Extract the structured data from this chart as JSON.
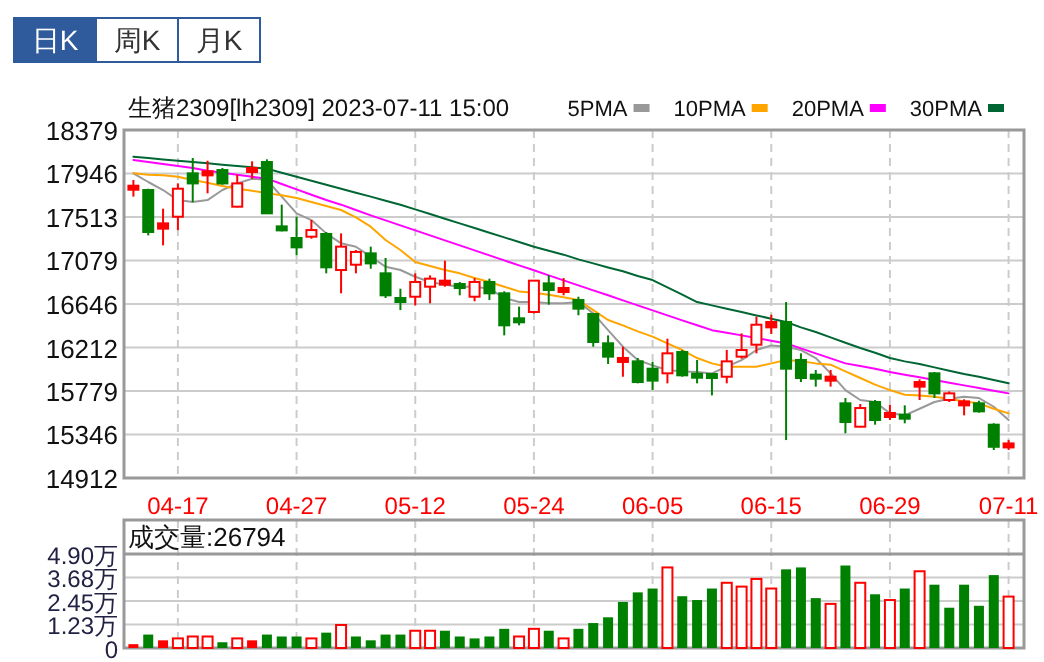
{
  "chart_data": [
    {
      "type": "candlestick",
      "title": "生猪2309[lh2309] 2023-07-11 15:00",
      "annotations": [
        "日K",
        "周K",
        "月K"
      ],
      "categories": [
        null,
        null,
        null,
        "04-17",
        null,
        null,
        null,
        null,
        null,
        null,
        null,
        "04-27",
        null,
        null,
        null,
        null,
        null,
        null,
        null,
        "05-12",
        null,
        null,
        null,
        null,
        null,
        null,
        null,
        "05-24",
        null,
        null,
        null,
        null,
        null,
        null,
        null,
        "06-05",
        null,
        null,
        null,
        null,
        null,
        null,
        null,
        "06-15",
        null,
        null,
        null,
        null,
        null,
        null,
        null,
        "06-29",
        null,
        null,
        null,
        null,
        null,
        null,
        null,
        "07-11"
      ],
      "ohlc": [
        [
          17794,
          17881,
          17715,
          17814
        ],
        [
          17781,
          17794,
          17329,
          17363
        ],
        [
          17396,
          17595,
          17230,
          17449
        ],
        [
          17515,
          17847,
          17382,
          17794
        ],
        [
          17947,
          18100,
          17661,
          17847
        ],
        [
          17940,
          18073,
          17748,
          17954
        ],
        [
          17980,
          18000,
          17834,
          17847
        ],
        [
          17615,
          17934,
          17608,
          17847
        ],
        [
          17974,
          18067,
          17894,
          17987
        ],
        [
          18060,
          18087,
          17542,
          17549
        ],
        [
          17416,
          17635,
          17369,
          17382
        ],
        [
          17303,
          17515,
          17130,
          17210
        ],
        [
          17316,
          17482,
          17296,
          17382
        ],
        [
          17343,
          17363,
          16951,
          17011
        ],
        [
          16984,
          17349,
          16752,
          17217
        ],
        [
          17037,
          17183,
          16951,
          17164
        ],
        [
          17150,
          17217,
          16997,
          17050
        ],
        [
          16951,
          17104,
          16705,
          16732
        ],
        [
          16699,
          16798,
          16585,
          16672
        ],
        [
          16718,
          16951,
          16632,
          16865
        ],
        [
          16818,
          16931,
          16652,
          16898
        ],
        [
          16851,
          17077,
          16818,
          16865
        ],
        [
          16838,
          16865,
          16732,
          16811
        ],
        [
          16718,
          16904,
          16672,
          16865
        ],
        [
          16865,
          16898,
          16685,
          16752
        ],
        [
          16752,
          16772,
          16333,
          16433
        ],
        [
          16493,
          16619,
          16433,
          16473
        ],
        [
          16566,
          16884,
          16552,
          16878
        ],
        [
          16851,
          16931,
          16639,
          16785
        ],
        [
          16772,
          16904,
          16732,
          16798
        ],
        [
          16685,
          16718,
          16533,
          16599
        ],
        [
          16546,
          16553,
          16220,
          16267
        ],
        [
          16254,
          16333,
          16048,
          16121
        ],
        [
          16068,
          16220,
          15921,
          16108
        ],
        [
          16074,
          16108,
          15855,
          15868
        ],
        [
          16001,
          16068,
          15789,
          15882
        ],
        [
          15955,
          16300,
          15855,
          16154
        ],
        [
          16167,
          16187,
          15921,
          15935
        ],
        [
          15941,
          16088,
          15855,
          15921
        ],
        [
          15935,
          15941,
          15735,
          15921
        ],
        [
          15921,
          16187,
          15855,
          16074
        ],
        [
          16121,
          16353,
          16101,
          16187
        ],
        [
          16240,
          16519,
          16154,
          16439
        ],
        [
          16413,
          16539,
          16347,
          16466
        ],
        [
          16466,
          16665,
          15290,
          16001
        ],
        [
          16088,
          16154,
          15868,
          15908
        ],
        [
          15941,
          15988,
          15822,
          15902
        ],
        [
          15895,
          15988,
          15822,
          15908
        ],
        [
          15656,
          15709,
          15357,
          15470
        ],
        [
          15423,
          15649,
          15417,
          15609
        ],
        [
          15669,
          15689,
          15443,
          15490
        ],
        [
          15530,
          15642,
          15490,
          15549
        ],
        [
          15530,
          15636,
          15457,
          15516
        ],
        [
          15822,
          15895,
          15689,
          15868
        ],
        [
          15955,
          15968,
          15709,
          15755
        ],
        [
          15689,
          15775,
          15669,
          15755
        ],
        [
          15649,
          15696,
          15536,
          15662
        ],
        [
          15656,
          15682,
          15563,
          15576
        ],
        [
          15443,
          15457,
          15191,
          15223
        ],
        [
          15230,
          15290,
          15191,
          15243
        ]
      ],
      "colors": [
        "#ff0000",
        "#008000",
        "#ff0000",
        "#ff0000",
        "#008000",
        "#ff0000",
        "#008000",
        "#ff0000",
        "#ff0000",
        "#008000",
        "#008000",
        "#008000",
        "#ff0000",
        "#008000",
        "#ff0000",
        "#ff0000",
        "#008000",
        "#008000",
        "#008000",
        "#ff0000",
        "#ff0000",
        "#ff0000",
        "#008000",
        "#ff0000",
        "#008000",
        "#008000",
        "#008000",
        "#ff0000",
        "#008000",
        "#ff0000",
        "#008000",
        "#008000",
        "#008000",
        "#ff0000",
        "#008000",
        "#008000",
        "#ff0000",
        "#008000",
        "#008000",
        "#008000",
        "#ff0000",
        "#ff0000",
        "#ff0000",
        "#ff0000",
        "#008000",
        "#008000",
        "#008000",
        "#ff0000",
        "#008000",
        "#ff0000",
        "#008000",
        "#ff0000",
        "#008000",
        "#ff0000",
        "#008000",
        "#ff0000",
        "#ff0000",
        "#008000",
        "#008000",
        "#ff0000"
      ],
      "series": [
        {
          "name": "5PMA",
          "type": "line",
          "color": "#999999",
          "values": [
            17947,
            17861,
            17781,
            17681,
            17661,
            17681,
            17781,
            17847,
            17894,
            17881,
            17715,
            17548,
            17482,
            17349,
            17250,
            17216,
            17117,
            17017,
            16984,
            16917,
            16864,
            16838,
            16818,
            16818,
            16798,
            16705,
            16665,
            16665,
            16652,
            16652,
            16665,
            16552,
            16386,
            16220,
            16087,
            16034,
            15988,
            15974,
            15968,
            15954,
            16021,
            16087,
            16187,
            16233,
            16220,
            16187,
            16107,
            15954,
            15788,
            15689,
            15669,
            15556,
            15536,
            15602,
            15669,
            15702,
            15722,
            15709,
            15622,
            15489
          ]
        },
        {
          "name": "10PMA",
          "type": "line",
          "color": "#ffa500",
          "values": [
            17947,
            17934,
            17927,
            17914,
            17881,
            17854,
            17821,
            17794,
            17774,
            17748,
            17728,
            17701,
            17661,
            17622,
            17582,
            17509,
            17416,
            17283,
            17183,
            17064,
            17024,
            16984,
            16951,
            16904,
            16864,
            16818,
            16771,
            16758,
            16738,
            16712,
            16685,
            16585,
            16486,
            16433,
            16373,
            16320,
            16253,
            16187,
            16107,
            16054,
            16021,
            16021,
            16021,
            16054,
            16087,
            16074,
            16054,
            16041,
            15974,
            15908,
            15842,
            15788,
            15742,
            15735,
            15722,
            15702,
            15675,
            15656,
            15602,
            15556
          ]
        },
        {
          "name": "20PMA",
          "type": "line",
          "color": "#ff00ff",
          "values": [
            18080,
            18060,
            18040,
            18020,
            18000,
            17974,
            17954,
            17934,
            17914,
            17894,
            17841,
            17788,
            17734,
            17681,
            17635,
            17582,
            17529,
            17479,
            17429,
            17379,
            17329,
            17279,
            17230,
            17180,
            17130,
            17080,
            17030,
            16981,
            16931,
            16881,
            16831,
            16781,
            16732,
            16682,
            16632,
            16582,
            16532,
            16482,
            16433,
            16385,
            16360,
            16333,
            16306,
            16280,
            16253,
            16203,
            16154,
            16104,
            16054,
            16027,
            16001,
            15968,
            15941,
            15915,
            15888,
            15861,
            15835,
            15808,
            15782,
            15755
          ]
        },
        {
          "name": "30PMA",
          "type": "line",
          "color": "#006633",
          "values": [
            18113,
            18100,
            18086,
            18073,
            18060,
            18047,
            18033,
            18020,
            18007,
            17994,
            17954,
            17914,
            17874,
            17834,
            17794,
            17754,
            17715,
            17675,
            17635,
            17588,
            17542,
            17495,
            17449,
            17402,
            17356,
            17309,
            17263,
            17216,
            17177,
            17137,
            17090,
            17050,
            17010,
            16971,
            16924,
            16884,
            16811,
            16738,
            16665,
            16632,
            16599,
            16565,
            16532,
            16499,
            16466,
            16413,
            16366,
            16313,
            16260,
            16207,
            16160,
            16107,
            16074,
            16047,
            16014,
            15981,
            15948,
            15921,
            15888,
            15855
          ]
        }
      ],
      "ylim": [
        14912,
        18379
      ],
      "yticks": [
        14912,
        15346,
        15779,
        16212,
        16646,
        17079,
        17513,
        17946,
        18379
      ],
      "grid": true,
      "legend": "top right"
    },
    {
      "type": "bar",
      "title": "成交量:26794",
      "categories": [
        null,
        null,
        null,
        null,
        null,
        null,
        null,
        null,
        null,
        null,
        null,
        null,
        null,
        null,
        null,
        null,
        null,
        null,
        null,
        null,
        null,
        null,
        null,
        null,
        null,
        null,
        null,
        null,
        null,
        null,
        null,
        null,
        null,
        null,
        null,
        null,
        null,
        null,
        null,
        null,
        null,
        null,
        null,
        null,
        null,
        null,
        null,
        null,
        null,
        null,
        null,
        null,
        null,
        null,
        null,
        null,
        null,
        null,
        null,
        null
      ],
      "values": [
        0.2,
        0.7,
        0.4,
        0.5,
        0.6,
        0.6,
        0.3,
        0.5,
        0.4,
        0.7,
        0.6,
        0.6,
        0.5,
        0.8,
        1.2,
        0.6,
        0.4,
        0.7,
        0.7,
        0.9,
        0.9,
        0.9,
        0.6,
        0.5,
        0.6,
        1.0,
        0.6,
        1.0,
        0.9,
        0.5,
        1.0,
        1.3,
        1.6,
        2.4,
        2.9,
        3.1,
        4.2,
        2.7,
        2.5,
        3.1,
        3.4,
        3.2,
        3.6,
        3.1,
        4.1,
        4.2,
        2.6,
        2.3,
        4.3,
        3.4,
        2.8,
        2.5,
        3.1,
        4.0,
        3.3,
        2.1,
        3.3,
        2.2,
        3.8,
        2.68
      ],
      "colors": [
        "#ff0000",
        "#008000",
        "#ff0000",
        "#ff0000",
        "#ff0000",
        "#ff0000",
        "#008000",
        "#ff0000",
        "#ff0000",
        "#008000",
        "#008000",
        "#008000",
        "#ff0000",
        "#008000",
        "#ff0000",
        "#008000",
        "#008000",
        "#008000",
        "#008000",
        "#ff0000",
        "#ff0000",
        "#008000",
        "#008000",
        "#008000",
        "#008000",
        "#008000",
        "#ff0000",
        "#ff0000",
        "#008000",
        "#ff0000",
        "#008000",
        "#008000",
        "#008000",
        "#008000",
        "#008000",
        "#008000",
        "#ff0000",
        "#008000",
        "#008000",
        "#008000",
        "#ff0000",
        "#ff0000",
        "#ff0000",
        "#ff0000",
        "#008000",
        "#008000",
        "#008000",
        "#ff0000",
        "#008000",
        "#ff0000",
        "#008000",
        "#ff0000",
        "#008000",
        "#ff0000",
        "#008000",
        "#008000",
        "#008000",
        "#008000",
        "#008000",
        "#ff0000"
      ],
      "ylim": [
        0,
        4.9
      ],
      "yticks": [
        0,
        {
          "value": 1.23,
          "label": "1.23万"
        },
        {
          "value": 2.45,
          "label": "2.45万"
        },
        {
          "value": 3.68,
          "label": "3.68万"
        },
        {
          "value": 4.9,
          "label": "4.90万"
        }
      ],
      "grid": true
    }
  ]
}
